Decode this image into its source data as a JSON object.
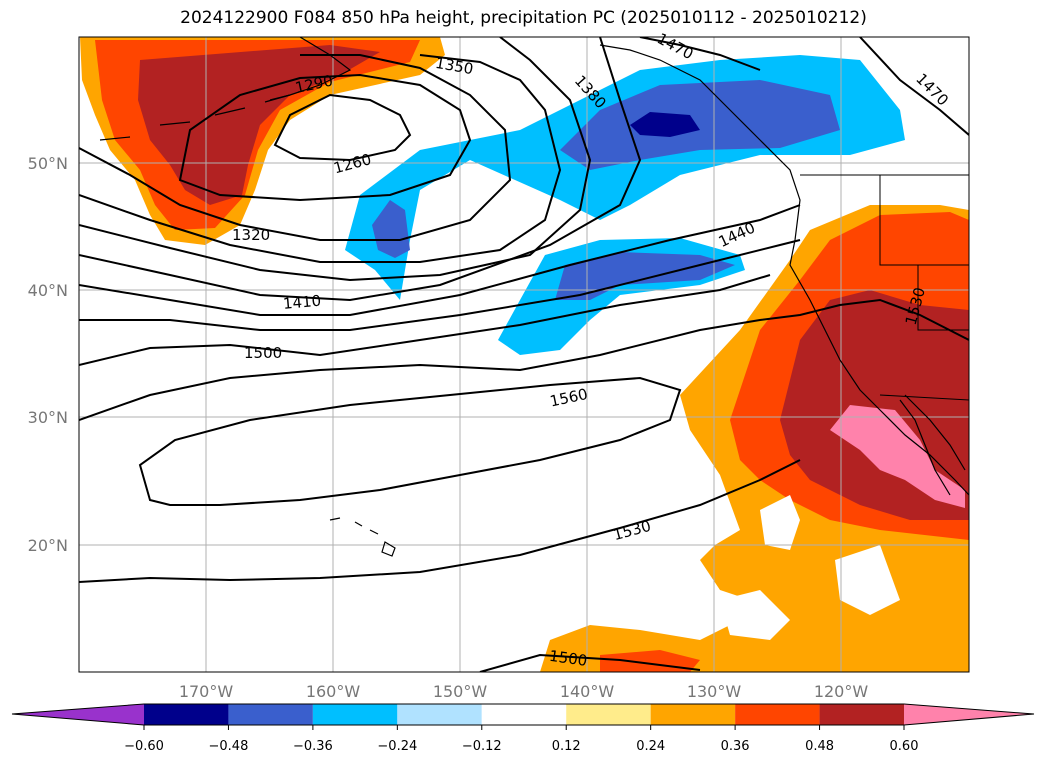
{
  "title": "2024122900 F084 850 hPa height, precipitation PC (2025010112 - 2025010212)",
  "map": {
    "lat_labels": [
      "50°N",
      "40°N",
      "30°N",
      "20°N"
    ],
    "lon_labels": [
      "170°W",
      "160°W",
      "150°W",
      "140°W",
      "130°W",
      "120°W"
    ],
    "contour_labels": [
      "1470",
      "1350",
      "1290",
      "1380",
      "1260",
      "1320",
      "1440",
      "1410",
      "1530",
      "1500",
      "1560",
      "1530",
      "1500",
      "1470"
    ],
    "colors": {
      "gridline": "#b0b0b0",
      "coastline": "#000000",
      "contour": "#000000"
    }
  },
  "colorbar": {
    "ticks": [
      "−0.60",
      "−0.48",
      "−0.36",
      "−0.24",
      "−0.12",
      "0.12",
      "0.24",
      "0.36",
      "0.48",
      "0.60"
    ],
    "bins": [
      {
        "color": "#9932cc"
      },
      {
        "color": "#00008b"
      },
      {
        "color": "#3a5fcd"
      },
      {
        "color": "#00bfff"
      },
      {
        "color": "#b0e2ff"
      },
      {
        "color": "#ffffff"
      },
      {
        "color": "#ffec8b"
      },
      {
        "color": "#ffa500"
      },
      {
        "color": "#ff4500"
      },
      {
        "color": "#b22222"
      },
      {
        "color": "#ff82ab"
      }
    ]
  }
}
